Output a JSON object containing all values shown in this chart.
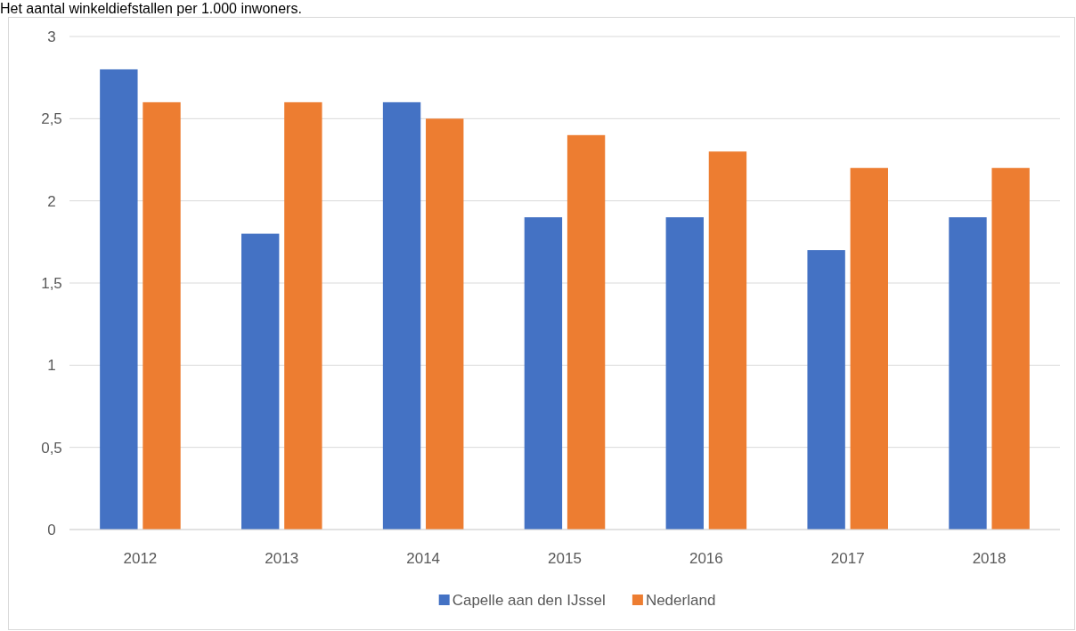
{
  "chart_data": {
    "type": "bar",
    "title": "Het aantal winkeldiefstallen per 1.000 inwoners.",
    "categories": [
      "2012",
      "2013",
      "2014",
      "2015",
      "2016",
      "2017",
      "2018"
    ],
    "series": [
      {
        "name": "Capelle aan den IJssel",
        "color": "#4472c4",
        "values": [
          2.8,
          1.8,
          2.6,
          1.9,
          1.9,
          1.7,
          1.9
        ]
      },
      {
        "name": "Nederland",
        "color": "#ed7d31",
        "values": [
          2.6,
          2.6,
          2.5,
          2.4,
          2.3,
          2.2,
          2.2
        ]
      }
    ],
    "ylim": [
      0,
      3
    ],
    "yticks": [
      0,
      {
        "value": 0.5,
        "label": "0,5"
      },
      1,
      {
        "value": 1.5,
        "label": "1,5"
      },
      2,
      {
        "value": 2.5,
        "label": "2,5"
      },
      3
    ],
    "grid": "y",
    "legend": "bottom"
  }
}
